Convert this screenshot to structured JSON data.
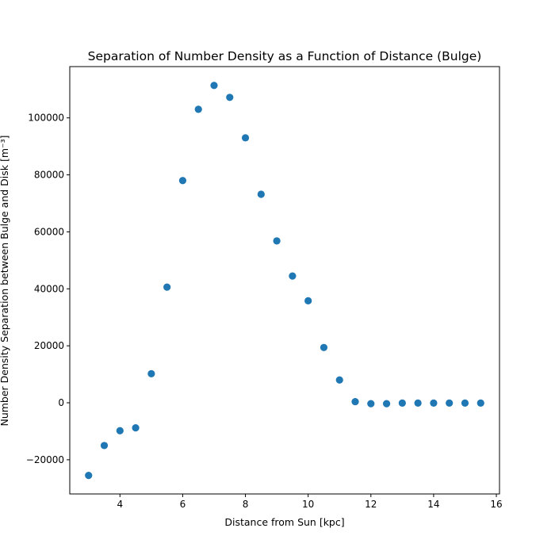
{
  "chart_data": {
    "type": "scatter",
    "title": "Separation of Number Density as a Function of Distance (Bulge)",
    "xlabel": "Distance from Sun [kpc]",
    "ylabel": "Number Density Separation between Bulge and Disk [m⁻³]",
    "xlim": [
      2.4,
      16.1
    ],
    "ylim": [
      -32000,
      118000
    ],
    "xticks": [
      4,
      6,
      8,
      10,
      12,
      14,
      16
    ],
    "yticks": [
      -20000,
      0,
      20000,
      40000,
      60000,
      80000,
      100000
    ],
    "grid": false,
    "marker_color": "#1f77b4",
    "series": [
      {
        "x": [
          3.0,
          3.5,
          4.0,
          4.5,
          5.0,
          5.5,
          6.0,
          6.5,
          7.0,
          7.5,
          8.0,
          8.5,
          9.0,
          9.5,
          10.0,
          10.5,
          11.0,
          11.5,
          12.0,
          12.5,
          13.0,
          13.5,
          14.0,
          14.5,
          15.0,
          15.5
        ],
        "y": [
          -25500,
          -15000,
          -9800,
          -8800,
          10200,
          40600,
          78000,
          103000,
          111400,
          107200,
          93000,
          73200,
          56800,
          44500,
          35800,
          19400,
          8000,
          400,
          -300,
          -300,
          -100,
          -100,
          -100,
          -100,
          -100,
          -100
        ]
      }
    ]
  }
}
